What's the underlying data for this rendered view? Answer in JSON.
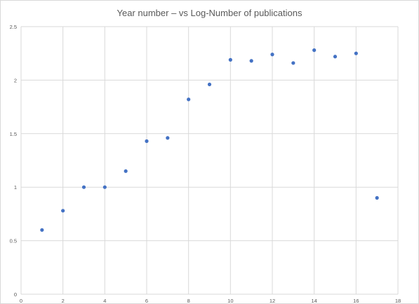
{
  "chart_data": {
    "type": "scatter",
    "title": "Year number – vs Log-Number of publications",
    "xlabel": "",
    "ylabel": "",
    "xlim": [
      0,
      18
    ],
    "ylim": [
      0,
      2.5
    ],
    "x_ticks": [
      0,
      2,
      4,
      6,
      8,
      10,
      12,
      14,
      16,
      18
    ],
    "y_ticks": [
      0,
      0.5,
      1,
      1.5,
      2,
      2.5
    ],
    "x_tick_labels": [
      "0",
      "2",
      "4",
      "6",
      "8",
      "10",
      "12",
      "14",
      "16",
      "18"
    ],
    "y_tick_labels": [
      "0",
      "0.5",
      "1",
      "1.5",
      "2",
      "2.5"
    ],
    "grid": true,
    "legend": "none",
    "marker_color": "#4472c4",
    "gridline_color": "#d9d9d9",
    "series": [
      {
        "x": [
          1,
          2,
          3,
          4,
          5,
          6,
          7,
          8,
          9,
          10,
          11,
          12,
          13,
          14,
          15,
          16,
          17
        ],
        "y": [
          0.6,
          0.78,
          1.0,
          1.0,
          1.15,
          1.43,
          1.46,
          1.82,
          1.96,
          2.19,
          2.18,
          2.24,
          2.16,
          2.28,
          2.22,
          2.25,
          0.9
        ]
      }
    ]
  }
}
